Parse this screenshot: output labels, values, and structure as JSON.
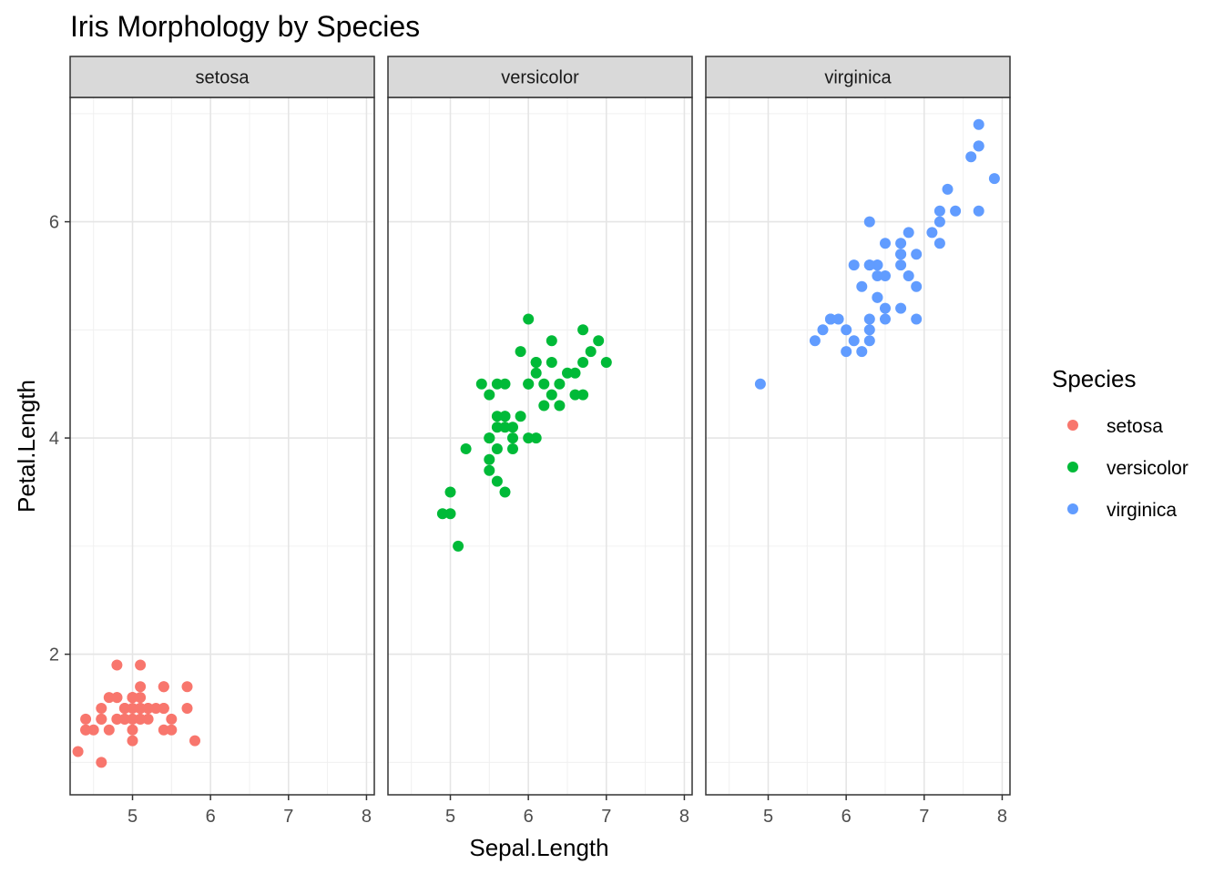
{
  "chart_data": {
    "type": "scatter",
    "title": "Iris Morphology by Species",
    "xlabel": "Sepal.Length",
    "ylabel": "Petal.Length",
    "xlim": [
      4.2,
      8.1
    ],
    "ylim": [
      0.7,
      7.15
    ],
    "x_ticks": [
      5,
      6,
      7,
      8
    ],
    "y_ticks": [
      2,
      4,
      6
    ],
    "x_minor": [
      4.5,
      5.5,
      6.5,
      7.5
    ],
    "y_minor": [
      1,
      3,
      5,
      7
    ],
    "grid": true,
    "facet_by": "Species",
    "legend": {
      "title": "Species",
      "position": "right"
    },
    "series": [
      {
        "name": "setosa",
        "color": "#F8766D",
        "points": [
          [
            5.1,
            1.4
          ],
          [
            4.9,
            1.4
          ],
          [
            4.7,
            1.3
          ],
          [
            4.6,
            1.5
          ],
          [
            5.0,
            1.4
          ],
          [
            5.4,
            1.7
          ],
          [
            4.6,
            1.4
          ],
          [
            5.0,
            1.5
          ],
          [
            4.4,
            1.4
          ],
          [
            4.9,
            1.5
          ],
          [
            5.4,
            1.5
          ],
          [
            4.8,
            1.6
          ],
          [
            4.8,
            1.4
          ],
          [
            4.3,
            1.1
          ],
          [
            5.8,
            1.2
          ],
          [
            5.7,
            1.5
          ],
          [
            5.4,
            1.3
          ],
          [
            5.1,
            1.4
          ],
          [
            5.7,
            1.7
          ],
          [
            5.1,
            1.5
          ],
          [
            5.4,
            1.7
          ],
          [
            5.1,
            1.5
          ],
          [
            4.6,
            1.0
          ],
          [
            5.1,
            1.7
          ],
          [
            4.8,
            1.9
          ],
          [
            5.0,
            1.6
          ],
          [
            5.0,
            1.6
          ],
          [
            5.2,
            1.5
          ],
          [
            5.2,
            1.4
          ],
          [
            4.7,
            1.6
          ],
          [
            4.8,
            1.6
          ],
          [
            5.4,
            1.5
          ],
          [
            5.2,
            1.5
          ],
          [
            5.5,
            1.4
          ],
          [
            4.9,
            1.5
          ],
          [
            5.0,
            1.2
          ],
          [
            5.5,
            1.3
          ],
          [
            4.9,
            1.4
          ],
          [
            4.4,
            1.3
          ],
          [
            5.1,
            1.5
          ],
          [
            5.0,
            1.3
          ],
          [
            4.5,
            1.3
          ],
          [
            4.4,
            1.3
          ],
          [
            5.0,
            1.6
          ],
          [
            5.1,
            1.9
          ],
          [
            4.8,
            1.4
          ],
          [
            5.1,
            1.6
          ],
          [
            4.6,
            1.4
          ],
          [
            5.3,
            1.5
          ],
          [
            5.0,
            1.4
          ]
        ]
      },
      {
        "name": "versicolor",
        "color": "#00BA38",
        "points": [
          [
            7.0,
            4.7
          ],
          [
            6.4,
            4.5
          ],
          [
            6.9,
            4.9
          ],
          [
            5.5,
            4.0
          ],
          [
            6.5,
            4.6
          ],
          [
            5.7,
            4.5
          ],
          [
            6.3,
            4.7
          ],
          [
            4.9,
            3.3
          ],
          [
            6.6,
            4.6
          ],
          [
            5.2,
            3.9
          ],
          [
            5.0,
            3.5
          ],
          [
            5.9,
            4.2
          ],
          [
            6.0,
            4.0
          ],
          [
            6.1,
            4.7
          ],
          [
            5.6,
            3.6
          ],
          [
            6.7,
            4.4
          ],
          [
            5.6,
            4.5
          ],
          [
            5.8,
            4.1
          ],
          [
            6.2,
            4.5
          ],
          [
            5.6,
            3.9
          ],
          [
            5.9,
            4.8
          ],
          [
            6.1,
            4.0
          ],
          [
            6.3,
            4.9
          ],
          [
            6.1,
            4.7
          ],
          [
            6.4,
            4.3
          ],
          [
            6.6,
            4.4
          ],
          [
            6.8,
            4.8
          ],
          [
            6.7,
            5.0
          ],
          [
            6.0,
            4.5
          ],
          [
            5.7,
            3.5
          ],
          [
            5.5,
            3.8
          ],
          [
            5.5,
            3.7
          ],
          [
            5.8,
            3.9
          ],
          [
            6.0,
            5.1
          ],
          [
            5.4,
            4.5
          ],
          [
            6.0,
            4.5
          ],
          [
            6.7,
            4.7
          ],
          [
            6.3,
            4.4
          ],
          [
            5.6,
            4.1
          ],
          [
            5.5,
            4.0
          ],
          [
            5.5,
            4.4
          ],
          [
            6.1,
            4.6
          ],
          [
            5.8,
            4.0
          ],
          [
            5.0,
            3.3
          ],
          [
            5.6,
            4.2
          ],
          [
            5.7,
            4.2
          ],
          [
            5.7,
            4.2
          ],
          [
            6.2,
            4.3
          ],
          [
            5.1,
            3.0
          ],
          [
            5.7,
            4.1
          ]
        ]
      },
      {
        "name": "virginica",
        "color": "#619CFF",
        "points": [
          [
            6.3,
            6.0
          ],
          [
            5.8,
            5.1
          ],
          [
            7.1,
            5.9
          ],
          [
            6.3,
            5.6
          ],
          [
            6.5,
            5.8
          ],
          [
            7.6,
            6.6
          ],
          [
            4.9,
            4.5
          ],
          [
            7.3,
            6.3
          ],
          [
            6.7,
            5.8
          ],
          [
            7.2,
            6.1
          ],
          [
            6.5,
            5.1
          ],
          [
            6.4,
            5.3
          ],
          [
            6.8,
            5.5
          ],
          [
            5.7,
            5.0
          ],
          [
            5.8,
            5.1
          ],
          [
            6.4,
            5.3
          ],
          [
            6.5,
            5.5
          ],
          [
            7.7,
            6.7
          ],
          [
            7.7,
            6.9
          ],
          [
            6.0,
            5.0
          ],
          [
            6.9,
            5.7
          ],
          [
            5.6,
            4.9
          ],
          [
            7.7,
            6.7
          ],
          [
            6.3,
            4.9
          ],
          [
            6.7,
            5.7
          ],
          [
            7.2,
            6.0
          ],
          [
            6.2,
            4.8
          ],
          [
            6.1,
            4.9
          ],
          [
            6.4,
            5.6
          ],
          [
            7.2,
            5.8
          ],
          [
            7.4,
            6.1
          ],
          [
            7.9,
            6.4
          ],
          [
            6.4,
            5.6
          ],
          [
            6.3,
            5.1
          ],
          [
            6.1,
            5.6
          ],
          [
            7.7,
            6.1
          ],
          [
            6.3,
            5.6
          ],
          [
            6.4,
            5.5
          ],
          [
            6.0,
            4.8
          ],
          [
            6.9,
            5.4
          ],
          [
            6.7,
            5.6
          ],
          [
            6.9,
            5.1
          ],
          [
            5.8,
            5.1
          ],
          [
            6.8,
            5.9
          ],
          [
            6.7,
            5.7
          ],
          [
            6.7,
            5.2
          ],
          [
            6.3,
            5.0
          ],
          [
            6.5,
            5.2
          ],
          [
            6.2,
            5.4
          ],
          [
            5.9,
            5.1
          ]
        ]
      }
    ]
  }
}
